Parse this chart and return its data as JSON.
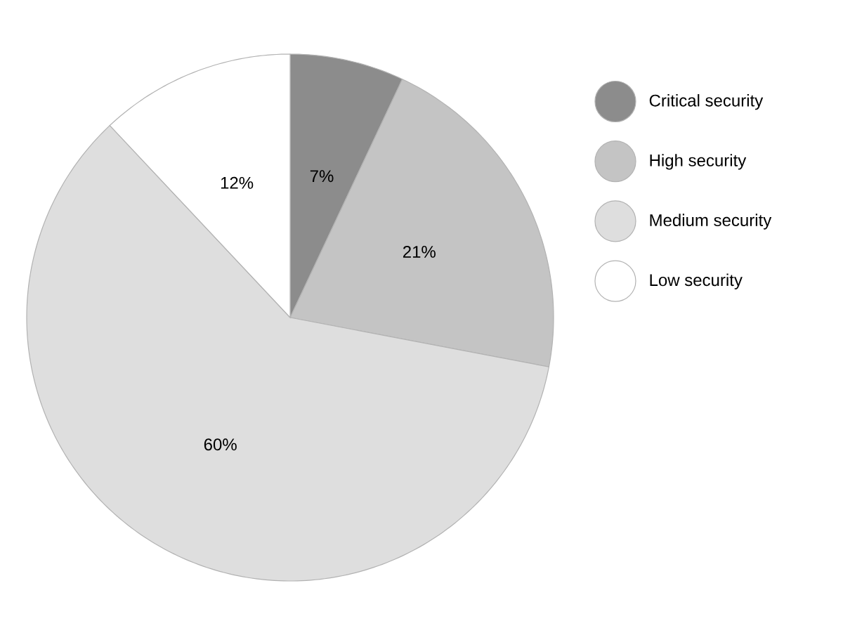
{
  "chart_data": {
    "type": "pie",
    "categories": [
      "Critical security",
      "High security",
      "Medium security",
      "Low security"
    ],
    "values": [
      7,
      21,
      60,
      12
    ],
    "value_labels": [
      "7%",
      "21%",
      "60%",
      "12%"
    ],
    "colors": [
      "#8c8c8c",
      "#c4c4c4",
      "#dedede",
      "#ffffff"
    ],
    "legend": "right"
  }
}
